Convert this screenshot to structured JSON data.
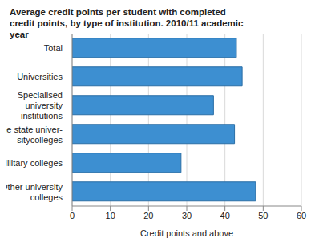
{
  "chart_data": {
    "type": "bar",
    "title": "Average credit points per student with completed credit points, by type of institution. 2010/11 academic year",
    "categories": [
      "Total",
      "Universities",
      "Specialised university institutions",
      "The state univer-sitycolleges",
      "Military colleges",
      "Other university colleges"
    ],
    "values": [
      43,
      44.5,
      37,
      42.5,
      28.5,
      48
    ],
    "color": "#3d8fd1",
    "orientation": "horizontal",
    "xlabel": "Credit points and above",
    "xlim": [
      0,
      60
    ],
    "xticks": [
      0,
      10,
      20,
      30,
      40,
      50,
      60
    ],
    "grid": true
  }
}
